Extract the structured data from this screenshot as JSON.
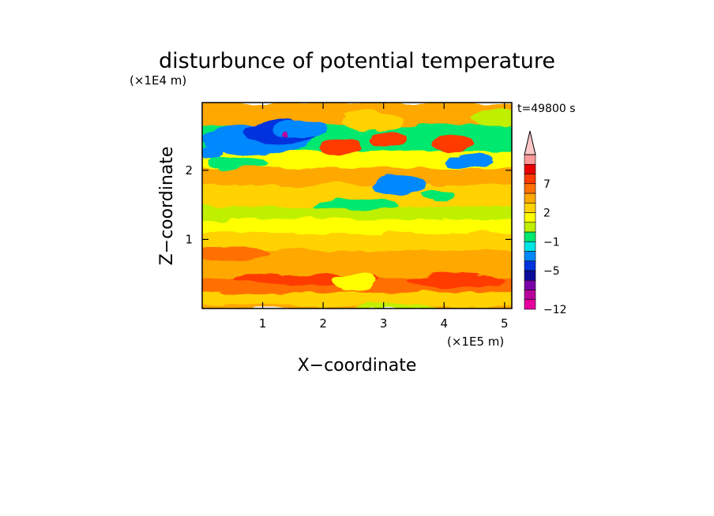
{
  "chart_data": {
    "type": "heatmap",
    "title": "disturbunce of potential temperature",
    "xlabel": "X−coordinate",
    "ylabel": "Z−coordinate",
    "x_unit": "(×1E5 m)",
    "y_unit": "(×1E4 m)",
    "time_label": "t=49800 s",
    "x_range": [
      0,
      5.12
    ],
    "y_range": [
      0,
      2.98
    ],
    "x_ticks": [
      1,
      2,
      3,
      4,
      5
    ],
    "y_ticks": [
      1,
      2
    ],
    "x_tick_labels": [
      "1",
      "2",
      "3",
      "4",
      "5"
    ],
    "y_tick_labels": [
      "1",
      "2"
    ],
    "colorbar": {
      "levels": [
        -12,
        -11,
        -9,
        -7,
        -5,
        -3,
        -2,
        -1,
        0,
        1,
        2,
        3,
        5,
        7,
        9,
        11
      ],
      "colors": [
        "#e6009e",
        "#b8009b",
        "#7a00a8",
        "#0c0c9a",
        "#0033dd",
        "#0088ff",
        "#00e5e5",
        "#00e86e",
        "#bff000",
        "#ffff00",
        "#ffd200",
        "#ffa800",
        "#ff7000",
        "#ff3b00",
        "#e80000",
        "#ff9a9a",
        "#ffc8c8"
      ],
      "tick_labels": [
        "−12",
        "−5",
        "−1",
        "2",
        "7"
      ],
      "tick_values": [
        -12,
        -5,
        -1,
        2,
        7
      ],
      "extend": "max"
    },
    "field_bands": [
      {
        "z_from": 0.0,
        "z_to": 0.06,
        "value": 2.5
      },
      {
        "z_from": 0.06,
        "z_to": 0.25,
        "value": 1.5
      },
      {
        "z_from": 0.25,
        "z_to": 0.45,
        "value": 3.0
      },
      {
        "z_from": 0.45,
        "z_to": 0.62,
        "value": 2.5
      },
      {
        "z_from": 0.62,
        "z_to": 0.85,
        "value": 2.0
      },
      {
        "z_from": 0.85,
        "z_to": 1.1,
        "value": 1.0
      },
      {
        "z_from": 1.1,
        "z_to": 1.3,
        "value": 0.2
      },
      {
        "z_from": 1.3,
        "z_to": 1.5,
        "value": -0.5
      },
      {
        "z_from": 1.5,
        "z_to": 1.8,
        "value": 1.5
      },
      {
        "z_from": 1.8,
        "z_to": 2.05,
        "value": 2.5
      },
      {
        "z_from": 2.05,
        "z_to": 2.3,
        "value": 0.5
      },
      {
        "z_from": 2.3,
        "z_to": 2.65,
        "value": -1.5
      },
      {
        "z_from": 2.65,
        "z_to": 2.98,
        "value": 2.5
      }
    ],
    "field_features": [
      {
        "x": 0.9,
        "z": 2.45,
        "rx": 0.9,
        "rz": 0.22,
        "value": -4.0
      },
      {
        "x": 1.3,
        "z": 2.55,
        "rx": 0.6,
        "rz": 0.18,
        "value": -6.0
      },
      {
        "x": 1.6,
        "z": 2.6,
        "rx": 0.45,
        "rz": 0.12,
        "value": -4.5
      },
      {
        "x": 0.15,
        "z": 2.25,
        "rx": 0.2,
        "rz": 0.12,
        "value": -5.0
      },
      {
        "x": 0.6,
        "z": 2.1,
        "rx": 0.5,
        "rz": 0.08,
        "value": -2.0
      },
      {
        "x": 3.25,
        "z": 1.78,
        "rx": 0.45,
        "rz": 0.12,
        "value": -4.0
      },
      {
        "x": 3.9,
        "z": 1.65,
        "rx": 0.25,
        "rz": 0.07,
        "value": -2.0
      },
      {
        "x": 4.4,
        "z": 2.15,
        "rx": 0.4,
        "rz": 0.1,
        "value": -4.0
      },
      {
        "x": 2.5,
        "z": 1.5,
        "rx": 0.7,
        "rz": 0.08,
        "value": -1.5
      },
      {
        "x": 2.3,
        "z": 2.35,
        "rx": 0.35,
        "rz": 0.1,
        "value": 5.0
      },
      {
        "x": 3.1,
        "z": 2.45,
        "rx": 0.3,
        "rz": 0.1,
        "value": 5.0
      },
      {
        "x": 4.15,
        "z": 2.4,
        "rx": 0.35,
        "rz": 0.12,
        "value": 6.0
      },
      {
        "x": 2.8,
        "z": 2.7,
        "rx": 0.5,
        "rz": 0.15,
        "value": 1.0
      },
      {
        "x": 4.8,
        "z": 2.75,
        "rx": 0.35,
        "rz": 0.15,
        "value": -1.0
      },
      {
        "x": 1.7,
        "z": 0.42,
        "rx": 1.2,
        "rz": 0.08,
        "value": 5.0
      },
      {
        "x": 4.2,
        "z": 0.4,
        "rx": 0.8,
        "rz": 0.1,
        "value": 5.0
      },
      {
        "x": 2.5,
        "z": 0.38,
        "rx": 0.35,
        "rz": 0.12,
        "value": 0.5
      },
      {
        "x": 0.3,
        "z": 0.8,
        "rx": 0.8,
        "rz": 0.1,
        "value": 3.0
      },
      {
        "x": 3.2,
        "z": 0.02,
        "rx": 0.7,
        "rz": 0.04,
        "value": -1.0
      },
      {
        "x": 1.4,
        "z": 2.52,
        "rx": 0.05,
        "rz": 0.03,
        "value": -12.0
      }
    ]
  }
}
